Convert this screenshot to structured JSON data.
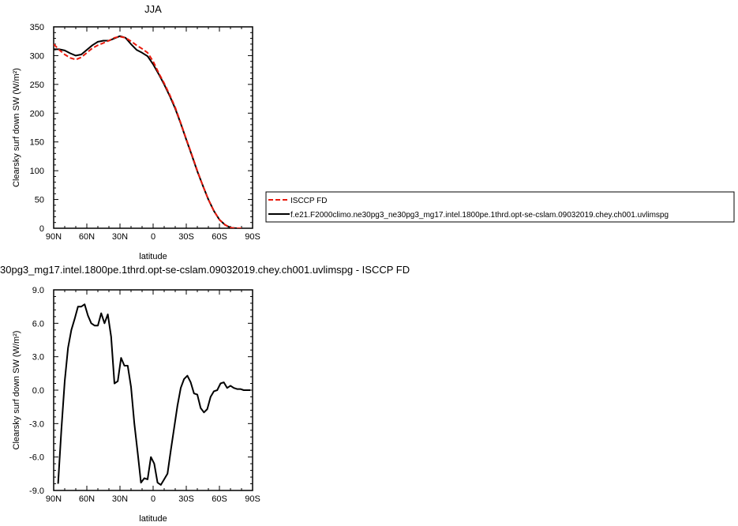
{
  "chart_data": [
    {
      "type": "line",
      "title": "JJA",
      "xlabel": "latitude",
      "ylabel": "Clearsky surf down SW (W/m²)",
      "xlim": [
        90,
        -90
      ],
      "ylim": [
        0,
        350
      ],
      "xticks": [
        "90N",
        "60N",
        "30N",
        "0",
        "30S",
        "60S",
        "90S"
      ],
      "yticks": [
        "0",
        "50",
        "100",
        "150",
        "200",
        "250",
        "300",
        "350"
      ],
      "legend_position": "right",
      "series": [
        {
          "name": "ISCCP FD",
          "color": "#e8190c",
          "style": "dashed",
          "x": [
            90,
            85,
            80,
            75,
            70,
            65,
            60,
            55,
            50,
            45,
            40,
            35,
            30,
            25,
            20,
            15,
            10,
            5,
            0,
            -5,
            -10,
            -15,
            -20,
            -25,
            -30,
            -35,
            -40,
            -45,
            -50,
            -55,
            -60,
            -65,
            -70,
            -75,
            -80
          ],
          "y": [
            320,
            310,
            302,
            296,
            293,
            297,
            305,
            313,
            318,
            322,
            326,
            331,
            333,
            331,
            325,
            318,
            312,
            305,
            290,
            270,
            252,
            232,
            210,
            183,
            155,
            128,
            100,
            74,
            50,
            30,
            15,
            6,
            1,
            0,
            0
          ]
        },
        {
          "name": "f.e21.F2000climo.ne30pg3_ne30pg3_mg17.intel.1800pe.1thrd.opt-se-cslam.09032019.chey.ch001.uvlimspg",
          "color": "#000000",
          "style": "solid",
          "x": [
            90,
            85,
            80,
            75,
            70,
            65,
            60,
            55,
            50,
            45,
            40,
            35,
            30,
            25,
            20,
            15,
            10,
            5,
            0,
            -5,
            -10,
            -15,
            -20,
            -25,
            -30,
            -35,
            -40,
            -45,
            -50,
            -55,
            -60,
            -65,
            -70,
            -75,
            -80
          ],
          "y": [
            311,
            311,
            309,
            304,
            300,
            302,
            310,
            318,
            324,
            326,
            326,
            330,
            334,
            331,
            320,
            310,
            305,
            299,
            285,
            268,
            250,
            230,
            208,
            182,
            154,
            127,
            99,
            74,
            50,
            30,
            15,
            6,
            1,
            0,
            0
          ]
        }
      ]
    },
    {
      "type": "line",
      "title": "30pg3_mg17.intel.1800pe.1thrd.opt-se-cslam.09032019.chey.ch001.uvlimspg - ISCCP FD",
      "xlabel": "latitude",
      "ylabel": "Clearsky surf down SW (W/m²)",
      "xlim": [
        90,
        -90
      ],
      "ylim": [
        -9.0,
        9.0
      ],
      "xticks": [
        "90N",
        "60N",
        "30N",
        "0",
        "30S",
        "60S",
        "90S"
      ],
      "yticks": [
        "-9.0",
        "-6.0",
        "-3.0",
        "0.0",
        "3.0",
        "6.0",
        "9.0"
      ],
      "series": [
        {
          "color": "#000000",
          "style": "solid",
          "x": [
            86,
            83,
            80,
            77,
            74,
            71,
            68,
            65,
            62,
            59,
            56,
            53,
            50,
            47,
            44,
            41,
            38,
            35,
            32,
            29,
            26,
            23,
            20,
            17,
            14,
            11,
            8,
            5,
            2,
            -1,
            -4,
            -7,
            -10,
            -13,
            -16,
            -19,
            -22,
            -25,
            -28,
            -31,
            -34,
            -37,
            -40,
            -43,
            -46,
            -49,
            -52,
            -55,
            -58,
            -61,
            -64,
            -67,
            -70,
            -73,
            -76,
            -79,
            -82,
            -85,
            -88
          ],
          "y": [
            -8.4,
            -3.5,
            0.8,
            3.8,
            5.4,
            6.4,
            7.5,
            7.5,
            7.7,
            6.7,
            6.0,
            5.8,
            5.8,
            6.9,
            6.0,
            6.8,
            4.8,
            0.6,
            0.8,
            2.9,
            2.2,
            2.2,
            0.3,
            -3.0,
            -5.6,
            -8.3,
            -7.9,
            -8.0,
            -6.0,
            -6.6,
            -8.3,
            -8.5,
            -8.0,
            -7.5,
            -5.4,
            -3.4,
            -1.4,
            0.2,
            1.0,
            1.3,
            0.7,
            -0.3,
            -0.4,
            -1.6,
            -2.0,
            -1.7,
            -0.6,
            -0.1,
            0.0,
            0.6,
            0.7,
            0.2,
            0.4,
            0.2,
            0.1,
            0.1,
            0.0,
            0.0,
            0.0
          ]
        }
      ]
    }
  ]
}
